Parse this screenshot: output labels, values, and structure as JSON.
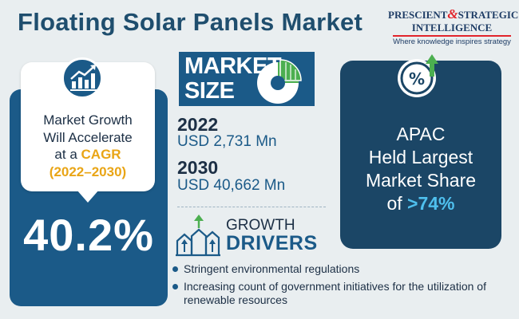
{
  "title": "Floating Solar Panels Market",
  "logo": {
    "line1_a": "PRESCIENT",
    "amp": "&",
    "line1_b": "STRATEGIC",
    "line2": "INTELLIGENCE",
    "tagline": "Where knowledge inspires strategy"
  },
  "cagr_card": {
    "line1": "Market Growth",
    "line2": "Will Accelerate",
    "line3_prefix": "at a ",
    "line3_highlight": "CAGR",
    "line4": "(2022–2030)",
    "value": "40.2%",
    "icon": "growth-chart-icon"
  },
  "market_size": {
    "label_line1": "MARKET",
    "label_line2": "SIZE",
    "icon": "pie-chart-icon",
    "entries": [
      {
        "year": "2022",
        "value": "USD 2,731 Mn"
      },
      {
        "year": "2030",
        "value": "USD 40,662 Mn"
      }
    ]
  },
  "growth_drivers": {
    "label_line1": "GROWTH",
    "label_line2": "DRIVERS",
    "icon": "houses-growth-icon",
    "items": [
      "Stringent environmental regulations",
      "Increasing count of government initiatives for the utilization of renewable resources"
    ]
  },
  "apac": {
    "line1": "APAC",
    "line2": "Held Largest",
    "line3": "Market Share",
    "line4_prefix": "of ",
    "line4_highlight": ">74%",
    "icon": "percent-growth-icon"
  },
  "colors": {
    "primary_blue": "#1b5a88",
    "dark_navy": "#1b4666",
    "accent_orange": "#e9a516",
    "accent_cyan": "#4fc0ee",
    "accent_green": "#4caf50",
    "logo_red": "#e2242b"
  }
}
